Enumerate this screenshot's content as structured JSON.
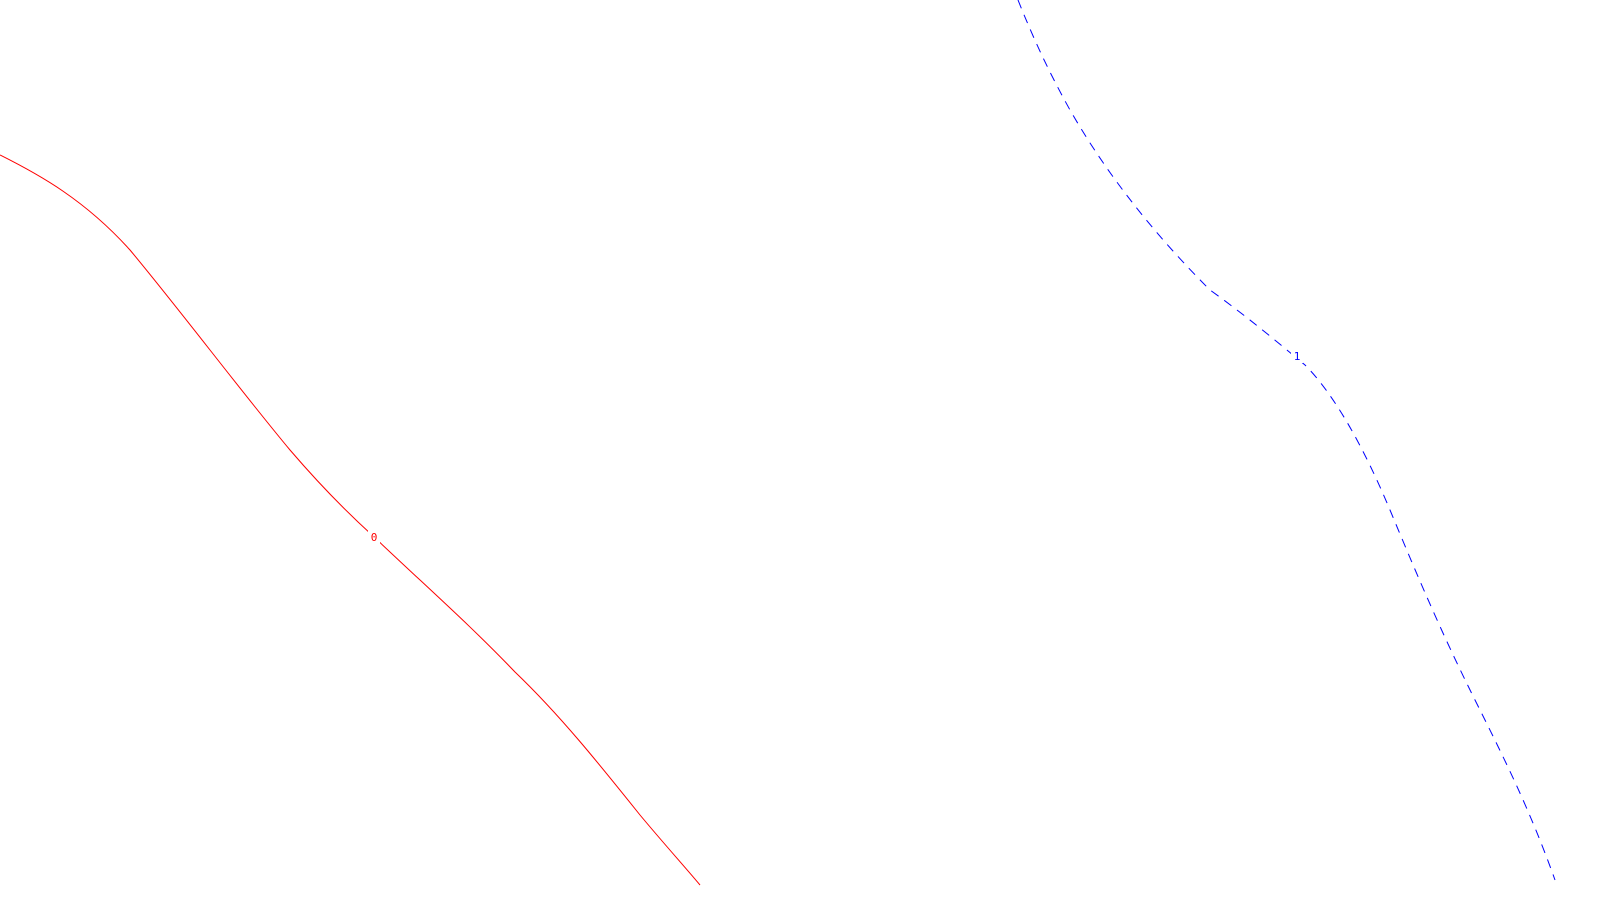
{
  "background_color": "#ffffff",
  "lines": [
    {
      "label": "0",
      "color": "#ff0000",
      "style": "solid"
    },
    {
      "label": "1",
      "color": "#0000ff",
      "style": "dashed"
    }
  ]
}
